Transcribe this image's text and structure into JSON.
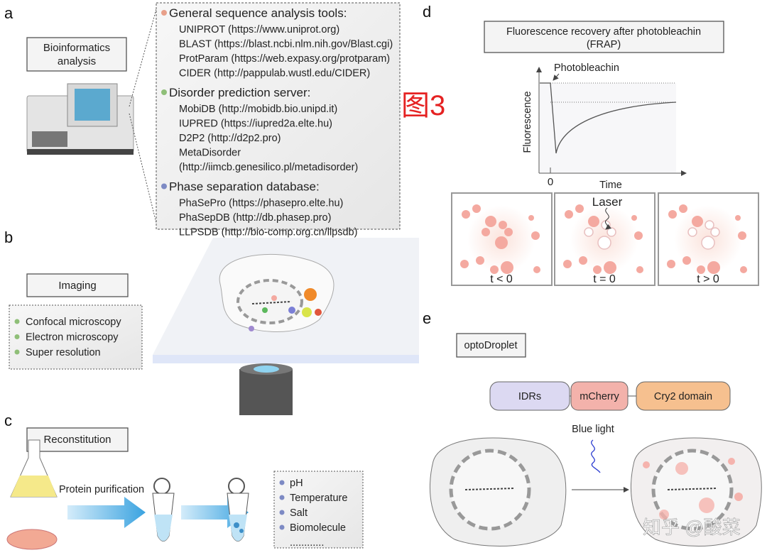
{
  "panel_labels": {
    "a": "a",
    "b": "b",
    "c": "c",
    "d": "d",
    "e": "e"
  },
  "figure_tag": "图3",
  "watermark": "知乎 @酸菜",
  "panel_a": {
    "title": [
      "Bioinformatics",
      "analysis"
    ],
    "groups": [
      {
        "heading": "General sequence analysis tools:",
        "bullet_color": "#e8a08a",
        "items": [
          "UNIPROT (https://www.uniprot.org)",
          "BLAST (https://blast.ncbi.nlm.nih.gov/Blast.cgi)",
          "ProtParam (https://web.expasy.org/protparam)",
          "CIDER (http://pappulab.wustl.edu/CIDER)"
        ]
      },
      {
        "heading": "Disorder prediction server:",
        "bullet_color": "#8fbf78",
        "items": [
          "MobiDB (http://mobidb.bio.unipd.it)",
          "IUPRED (https://iupred2a.elte.hu)",
          "D2P2 (http://d2p2.pro)",
          "MetaDisorder",
          "(http://iimcb.genesilico.pl/metadisorder)"
        ]
      },
      {
        "heading": "Phase separation database:",
        "bullet_color": "#7d8ac4",
        "items": [
          "PhaSePro (https://phasepro.elte.hu)",
          "PhaSepDB (http://db.phasep.pro)",
          "LLPSDB (http://bio-comp.org.cn/llpsdb)"
        ]
      }
    ]
  },
  "panel_b": {
    "title": "Imaging",
    "bullet_color": "#8fbf78",
    "items": [
      "Confocal microscopy",
      "Electron microscopy",
      "Super resolution"
    ]
  },
  "panel_c": {
    "title": "Reconstitution",
    "step_label": "Protein purification",
    "bullet_color": "#7d8ac4",
    "conditions": [
      "pH",
      "Temperature",
      "Salt",
      "Biomolecule",
      "............"
    ]
  },
  "panel_d": {
    "title": [
      "Fluorescence recovery after photobleachin",
      "(FRAP)"
    ],
    "annotation": "Photobleachin",
    "ylabel": "Fluorescence",
    "xlabel": "Time",
    "x_tick": "0",
    "laser_label": "Laser",
    "snapshots": [
      "t < 0",
      "t = 0",
      "t > 0"
    ]
  },
  "panel_e": {
    "title": "optoDroplet",
    "domains": [
      {
        "label": "IDRs",
        "color": "#dcd9f2"
      },
      {
        "label": "mCherry",
        "color": "#f3b2ab"
      },
      {
        "label": "Cry2 domain",
        "color": "#f6c08f"
      }
    ],
    "stimulus": "Blue light"
  }
}
